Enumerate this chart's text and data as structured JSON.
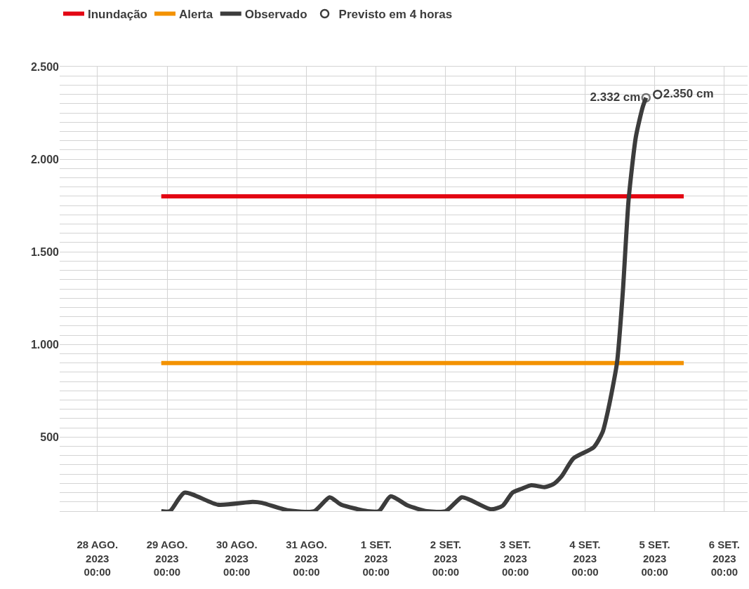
{
  "chart_data": {
    "type": "line",
    "legend": "top left",
    "grid": true,
    "line_style": "solid",
    "xlim": [
      "2023-08-27T11:00",
      "2023-09-06T08:00"
    ],
    "xticks": [
      {
        "value": "2023-08-28",
        "label": "28 AGO.\n2023\n00:00"
      },
      {
        "value": "2023-08-29",
        "label": "29 AGO.\n2023\n00:00"
      },
      {
        "value": "2023-08-30",
        "label": "30 AGO.\n2023\n00:00"
      },
      {
        "value": "2023-08-31",
        "label": "31 AGO.\n2023\n00:00"
      },
      {
        "value": "2023-09-01",
        "label": "1 SET.\n2023\n00:00"
      },
      {
        "value": "2023-09-02",
        "label": "2 SET.\n2023\n00:00"
      },
      {
        "value": "2023-09-03",
        "label": "3 SET.\n2023\n00:00"
      },
      {
        "value": "2023-09-04",
        "label": "4 SET.\n2023\n00:00"
      },
      {
        "value": "2023-09-05",
        "label": "5 SET.\n2023\n00:00"
      },
      {
        "value": "2023-09-06",
        "label": "6 SET.\n2023\n00:00"
      }
    ],
    "ylim": [
      100,
      2500
    ],
    "yticks": [
      {
        "value": 100,
        "label": null
      },
      {
        "value": 150,
        "label": null
      },
      {
        "value": 200,
        "label": null
      },
      {
        "value": 250,
        "label": null
      },
      {
        "value": 300,
        "label": null
      },
      {
        "value": 350,
        "label": null
      },
      {
        "value": 400,
        "label": null
      },
      {
        "value": 450,
        "label": null
      },
      {
        "value": 500,
        "label": "500"
      },
      {
        "value": 550,
        "label": null
      },
      {
        "value": 600,
        "label": null
      },
      {
        "value": 650,
        "label": null
      },
      {
        "value": 700,
        "label": null
      },
      {
        "value": 750,
        "label": null
      },
      {
        "value": 800,
        "label": null
      },
      {
        "value": 850,
        "label": null
      },
      {
        "value": 900,
        "label": null
      },
      {
        "value": 950,
        "label": null
      },
      {
        "value": 1000,
        "label": "1.000"
      },
      {
        "value": 1050,
        "label": null
      },
      {
        "value": 1100,
        "label": null
      },
      {
        "value": 1150,
        "label": null
      },
      {
        "value": 1200,
        "label": null
      },
      {
        "value": 1250,
        "label": null
      },
      {
        "value": 1300,
        "label": null
      },
      {
        "value": 1350,
        "label": null
      },
      {
        "value": 1400,
        "label": null
      },
      {
        "value": 1450,
        "label": null
      },
      {
        "value": 1500,
        "label": "1.500"
      },
      {
        "value": 1550,
        "label": null
      },
      {
        "value": 1600,
        "label": null
      },
      {
        "value": 1650,
        "label": null
      },
      {
        "value": 1700,
        "label": null
      },
      {
        "value": 1750,
        "label": null
      },
      {
        "value": 1800,
        "label": null
      },
      {
        "value": 1850,
        "label": null
      },
      {
        "value": 1900,
        "label": null
      },
      {
        "value": 1950,
        "label": null
      },
      {
        "value": 2000,
        "label": "2.000"
      },
      {
        "value": 2050,
        "label": null
      },
      {
        "value": 2100,
        "label": null
      },
      {
        "value": 2150,
        "label": null
      },
      {
        "value": 2200,
        "label": null
      },
      {
        "value": 2250,
        "label": null
      },
      {
        "value": 2300,
        "label": null
      },
      {
        "value": 2350,
        "label": null
      },
      {
        "value": 2400,
        "label": null
      },
      {
        "value": 2450,
        "label": null
      },
      {
        "value": 2500,
        "label": "2.500"
      }
    ],
    "series": [
      {
        "name": "Inundação",
        "color": "#e30613",
        "x": [
          "2023-08-28T22:00",
          "2023-09-05T10:00"
        ],
        "values": [
          1800,
          1800
        ]
      },
      {
        "name": "Alerta",
        "color": "#f39200",
        "x": [
          "2023-08-28T22:00",
          "2023-09-05T10:00"
        ],
        "values": [
          900,
          900
        ]
      },
      {
        "name": "Observado",
        "color": "#3c3c3c",
        "marker": "none",
        "x": [
          "2023-08-28T22:00",
          "2023-08-29T01:00",
          "2023-08-29T06:00",
          "2023-08-29T17:30",
          "2023-08-30T05:30",
          "2023-08-30T08:40",
          "2023-08-30T17:30",
          "2023-08-31T02:40",
          "2023-08-31T08:00",
          "2023-08-31T12:00",
          "2023-08-31T21:00",
          "2023-09-01T01:00",
          "2023-09-01T05:00",
          "2023-09-01T11:00",
          "2023-09-01T17:30",
          "2023-09-02T00:00",
          "2023-09-02T05:30",
          "2023-09-02T08:30",
          "2023-09-02T15:40",
          "2023-09-02T19:40",
          "2023-09-02T23:00",
          "2023-09-03T02:00",
          "2023-09-03T05:30",
          "2023-09-03T10:00",
          "2023-09-03T13:00",
          "2023-09-03T16:00",
          "2023-09-03T20:00",
          "2023-09-04T03:00",
          "2023-09-04T06:00",
          "2023-09-04T08:00",
          "2023-09-04T11:00",
          "2023-09-04T13:00",
          "2023-09-04T15:00",
          "2023-09-04T17:30",
          "2023-09-04T19:50",
          "2023-09-04T21:00"
        ],
        "values": [
          100,
          100,
          200,
          135,
          150,
          145,
          105,
          100,
          175,
          135,
          100,
          100,
          180,
          130,
          100,
          100,
          175,
          160,
          110,
          130,
          200,
          220,
          240,
          230,
          245,
          290,
          385,
          445,
          525,
          650,
          900,
          1280,
          1780,
          2120,
          2280,
          2332
        ],
        "value_labels": [
          null,
          null,
          null,
          null,
          null,
          null,
          null,
          null,
          null,
          null,
          null,
          null,
          null,
          null,
          null,
          null,
          null,
          null,
          null,
          null,
          null,
          null,
          null,
          null,
          null,
          null,
          null,
          null,
          null,
          null,
          null,
          null,
          null,
          null,
          null,
          "2.332 cm"
        ]
      },
      {
        "name": "Previsto em 4 horas",
        "type": "scatter",
        "color": "#3c3c3c",
        "marker": "circle",
        "x": [
          "2023-09-05T01:00"
        ],
        "values": [
          2350
        ],
        "value_labels": [
          "2.350 cm"
        ]
      }
    ]
  }
}
